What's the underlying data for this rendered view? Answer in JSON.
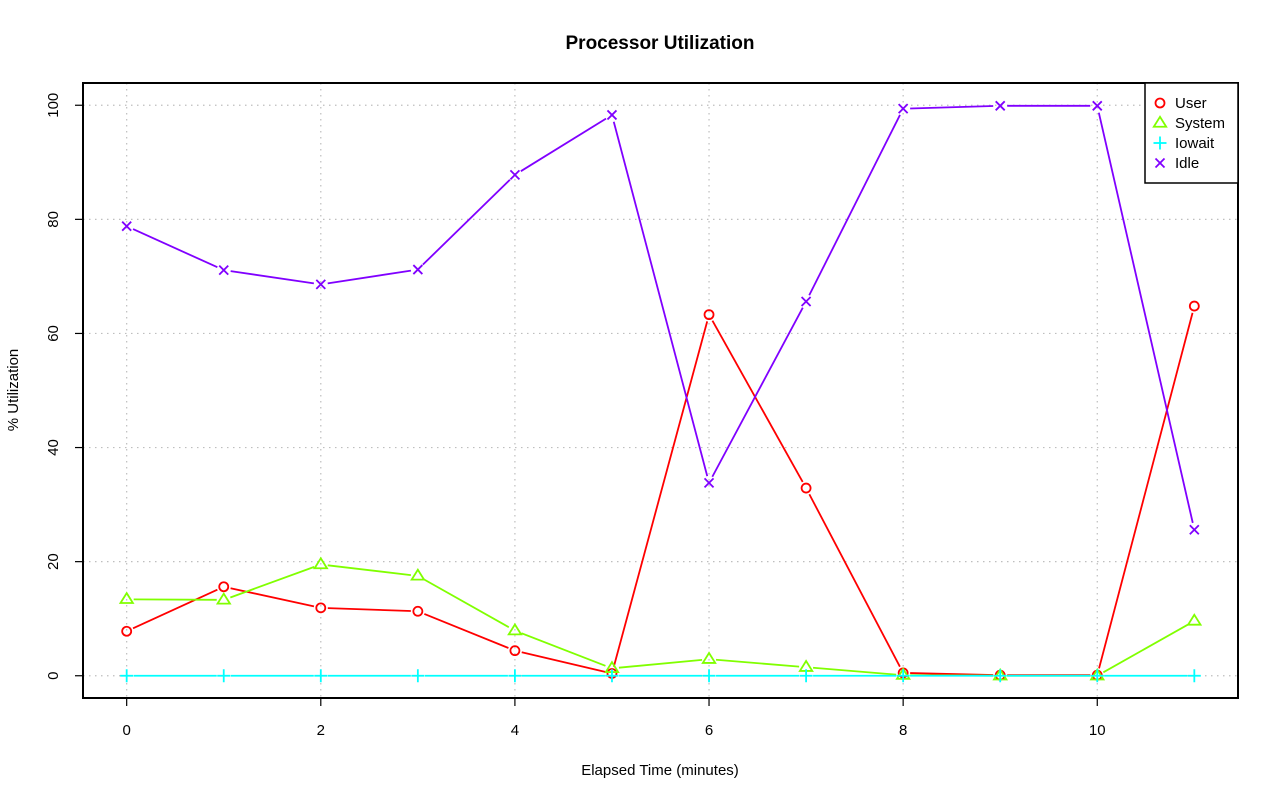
{
  "chart_data": {
    "type": "line",
    "title": "Processor Utilization",
    "xlabel": "Elapsed Time (minutes)",
    "ylabel": "% Utilization",
    "x": [
      0,
      1,
      2,
      3,
      4,
      5,
      6,
      7,
      8,
      9,
      10,
      11
    ],
    "xlim": [
      -0.45,
      11.45
    ],
    "ylim": [
      -3.9,
      103.9
    ],
    "x_ticks": [
      0,
      2,
      4,
      6,
      8,
      10
    ],
    "y_ticks": [
      0,
      20,
      40,
      60,
      80,
      100
    ],
    "grid": true,
    "legend_position": "top-right",
    "series": [
      {
        "name": "User",
        "color": "#ff0000",
        "marker": "circle",
        "values": [
          7.8,
          15.6,
          11.9,
          11.3,
          4.4,
          0.4,
          63.3,
          32.9,
          0.5,
          0.1,
          0.1,
          64.8
        ]
      },
      {
        "name": "System",
        "color": "#80ff00",
        "marker": "triangle",
        "values": [
          13.4,
          13.3,
          19.5,
          17.5,
          7.9,
          1.3,
          2.9,
          1.5,
          0.1,
          0.0,
          0.0,
          9.6
        ]
      },
      {
        "name": "Iowait",
        "color": "#00ffff",
        "marker": "plus",
        "values": [
          0,
          0,
          0,
          0,
          0,
          0,
          0,
          0,
          0,
          0,
          0,
          0
        ]
      },
      {
        "name": "Idle",
        "color": "#8000ff",
        "marker": "cross",
        "values": [
          78.8,
          71.1,
          68.6,
          71.2,
          87.8,
          98.3,
          33.8,
          65.6,
          99.4,
          99.9,
          99.9,
          25.6
        ]
      }
    ]
  }
}
